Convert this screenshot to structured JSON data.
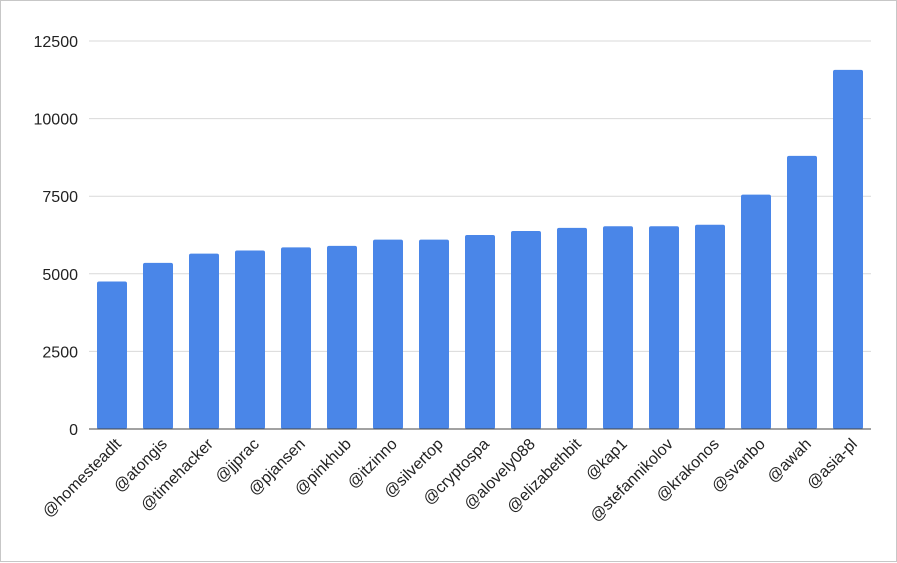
{
  "chart_data": {
    "type": "bar",
    "title": "",
    "xlabel": "",
    "ylabel": "",
    "ylim": [
      0,
      12500
    ],
    "yticks": [
      0,
      2500,
      5000,
      7500,
      10000,
      12500
    ],
    "grid": true,
    "legend": "none",
    "bar_color": "#4a86e8",
    "categories": [
      "@homesteadlt",
      "@atongis",
      "@timehacker",
      "@jjprac",
      "@pjansen",
      "@pinkhub",
      "@itzinno",
      "@silvertop",
      "@cryptospa",
      "@alovely088",
      "@elizabethbit",
      "@kap1",
      "@stefannikolov",
      "@krakonos",
      "@svanbo",
      "@awah",
      "@asia-pl"
    ],
    "values": [
      4750,
      5350,
      5650,
      5750,
      5850,
      5900,
      6100,
      6100,
      6250,
      6380,
      6480,
      6530,
      6530,
      6580,
      7550,
      8800,
      11570
    ]
  }
}
